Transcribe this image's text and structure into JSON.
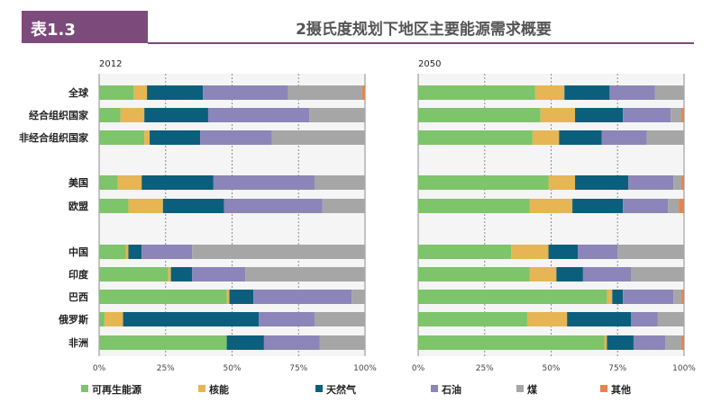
{
  "header": {
    "badge": "表1.3",
    "title": "2摄氏度规划下地区主要能源需求概要"
  },
  "colors": {
    "badge_bg": "#7d4a7c",
    "header_line": "#7d4a7c",
    "panel_bg": "#f5f5f5",
    "grid": "#8c8c8c"
  },
  "chart_data": [
    {
      "type": "bar",
      "orientation": "horizontal",
      "stacked": true,
      "title": "2012",
      "categories": [
        "全球",
        "经合组织国家",
        "非经合组织国家",
        "美国",
        "欧盟",
        "中国",
        "印度",
        "巴西",
        "俄罗斯",
        "非洲"
      ],
      "xlim": [
        0,
        100
      ],
      "x_ticks": [
        "0%",
        "25%",
        "50%",
        "75%",
        "100%"
      ],
      "series": [
        {
          "name": "可再生能源",
          "color": "#7dc46a",
          "values": [
            13,
            8,
            17,
            7,
            11,
            10,
            26,
            48,
            2,
            48
          ]
        },
        {
          "name": "核能",
          "color": "#e6b554",
          "values": [
            5,
            9,
            2,
            9,
            13,
            1,
            1,
            1,
            7,
            0
          ]
        },
        {
          "name": "天然气",
          "color": "#0c5f7c",
          "values": [
            21,
            24,
            19,
            27,
            23,
            5,
            8,
            9,
            51,
            14
          ]
        },
        {
          "name": "石油",
          "color": "#8b85b9",
          "values": [
            32,
            38,
            27,
            38,
            37,
            19,
            20,
            37,
            21,
            21
          ]
        },
        {
          "name": "煤",
          "color": "#a6a6a6",
          "values": [
            28,
            21,
            35,
            19,
            16,
            65,
            45,
            5,
            19,
            17
          ]
        },
        {
          "name": "其他",
          "color": "#e6844e",
          "values": [
            1,
            0,
            0,
            0,
            0,
            0,
            0,
            0,
            0,
            0
          ]
        }
      ]
    },
    {
      "type": "bar",
      "orientation": "horizontal",
      "stacked": true,
      "title": "2050",
      "categories": [
        "全球",
        "经合组织国家",
        "非经合组织国家",
        "美国",
        "欧盟",
        "中国",
        "印度",
        "巴西",
        "俄罗斯",
        "非洲"
      ],
      "xlim": [
        0,
        100
      ],
      "x_ticks": [
        "0%",
        "25%",
        "50%",
        "75%",
        "100%"
      ],
      "series": [
        {
          "name": "可再生能源",
          "color": "#7dc46a",
          "values": [
            44,
            46,
            43,
            49,
            42,
            35,
            42,
            71,
            41,
            70
          ]
        },
        {
          "name": "核能",
          "color": "#e6b554",
          "values": [
            11,
            13,
            10,
            10,
            16,
            14,
            10,
            2,
            15,
            1
          ]
        },
        {
          "name": "天然气",
          "color": "#0c5f7c",
          "values": [
            17,
            18,
            16,
            20,
            19,
            11,
            10,
            4,
            24,
            10
          ]
        },
        {
          "name": "石油",
          "color": "#8b85b9",
          "values": [
            17,
            18,
            17,
            17,
            17,
            15,
            18,
            19,
            10,
            12
          ]
        },
        {
          "name": "煤",
          "color": "#a6a6a6",
          "values": [
            11,
            4,
            14,
            3,
            4,
            25,
            20,
            3,
            10,
            6
          ]
        },
        {
          "name": "其他",
          "color": "#e6844e",
          "values": [
            0,
            1,
            0,
            1,
            2,
            0,
            0,
            1,
            0,
            1
          ]
        }
      ]
    }
  ]
}
